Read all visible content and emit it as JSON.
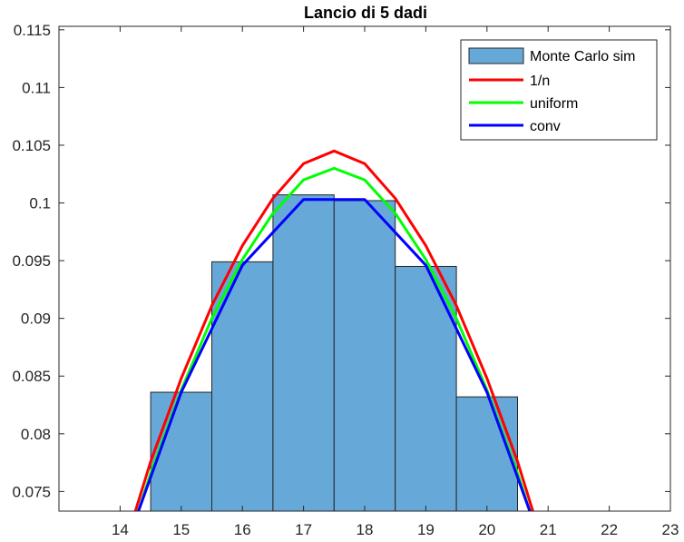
{
  "chart_data": {
    "type": "bar",
    "title": "Lancio di 5 dadi",
    "xlabel": "",
    "ylabel": "",
    "xlim": [
      13,
      23
    ],
    "ylim": [
      0.0733,
      0.1153
    ],
    "xticks": [
      14,
      15,
      16,
      17,
      18,
      19,
      20,
      21,
      22,
      23
    ],
    "yticks": [
      0.075,
      0.08,
      0.085,
      0.09,
      0.095,
      0.1,
      0.105,
      0.11,
      0.115
    ],
    "xtick_labels": [
      "14",
      "15",
      "16",
      "17",
      "18",
      "19",
      "20",
      "21",
      "22",
      "23"
    ],
    "ytick_labels": [
      "0.075",
      "0.08",
      "0.085",
      "0.09",
      "0.095",
      "0.1",
      "0.105",
      "0.11",
      "0.115"
    ],
    "grid": false,
    "legend_position": "top-right",
    "histogram": {
      "name": "Monte Carlo sim",
      "bin_edges": [
        14.5,
        15.5,
        16.5,
        17.5,
        18.5,
        19.5,
        20.5
      ],
      "values": [
        0.0836,
        0.0949,
        0.1007,
        0.1002,
        0.0945,
        0.0832
      ],
      "color": "#66a9d9"
    },
    "series": [
      {
        "name": "1/n",
        "color": "#ff0000",
        "x": [
          14.25,
          14.5,
          15.0,
          15.5,
          16.0,
          16.5,
          17.0,
          17.5,
          18.0,
          18.5,
          19.0,
          19.5,
          20.0,
          20.5,
          20.75
        ],
        "values": [
          0.0733,
          0.0776,
          0.0848,
          0.0911,
          0.0963,
          0.1004,
          0.1034,
          0.1045,
          0.1034,
          0.1004,
          0.0963,
          0.0911,
          0.0848,
          0.0776,
          0.0733
        ]
      },
      {
        "name": "uniform",
        "color": "#00ff00",
        "x": [
          14.3,
          14.5,
          15.0,
          15.5,
          16.0,
          16.5,
          17.0,
          17.5,
          18.0,
          18.5,
          19.0,
          19.5,
          20.0,
          20.5,
          20.7
        ],
        "values": [
          0.0733,
          0.0766,
          0.0838,
          0.09,
          0.0951,
          0.0991,
          0.102,
          0.103,
          0.102,
          0.0991,
          0.0951,
          0.09,
          0.0838,
          0.0766,
          0.0733
        ]
      },
      {
        "name": "conv",
        "color": "#0000ff",
        "x": [
          14.3,
          15.0,
          16.0,
          17.0,
          18.0,
          19.0,
          20.0,
          20.7
        ],
        "values": [
          0.0733,
          0.0836,
          0.0946,
          0.1003,
          0.1003,
          0.0946,
          0.0836,
          0.0733
        ]
      }
    ]
  }
}
